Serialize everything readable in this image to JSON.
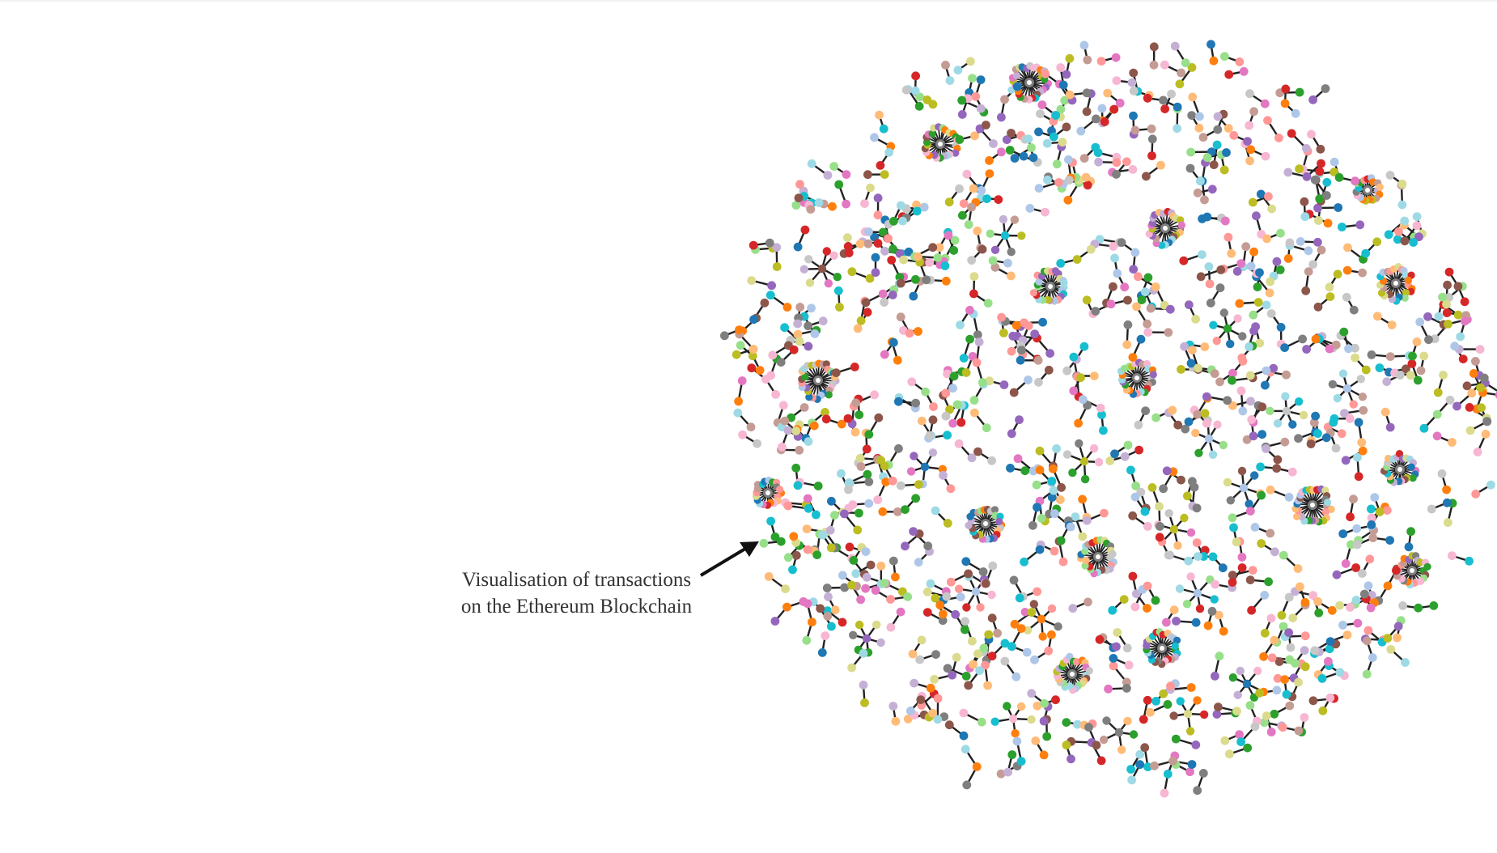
{
  "caption": {
    "line1": "Visualisation of transactions",
    "line2": "on the Ethereum Blockchain"
  },
  "colors": {
    "palette": [
      "#1f77b4",
      "#aec7e8",
      "#ff7f0e",
      "#ffbb78",
      "#2ca02c",
      "#98df8a",
      "#d62728",
      "#ff9896",
      "#9467bd",
      "#c5b0d5",
      "#8c564b",
      "#c49c94",
      "#e377c2",
      "#f7b6d2",
      "#7f7f7f",
      "#c7c7c7",
      "#bcbd22",
      "#dbdb8d",
      "#17becf",
      "#9edae5"
    ],
    "edge": "#222222",
    "caption_text": "#333333",
    "arrow": "#111111"
  }
}
